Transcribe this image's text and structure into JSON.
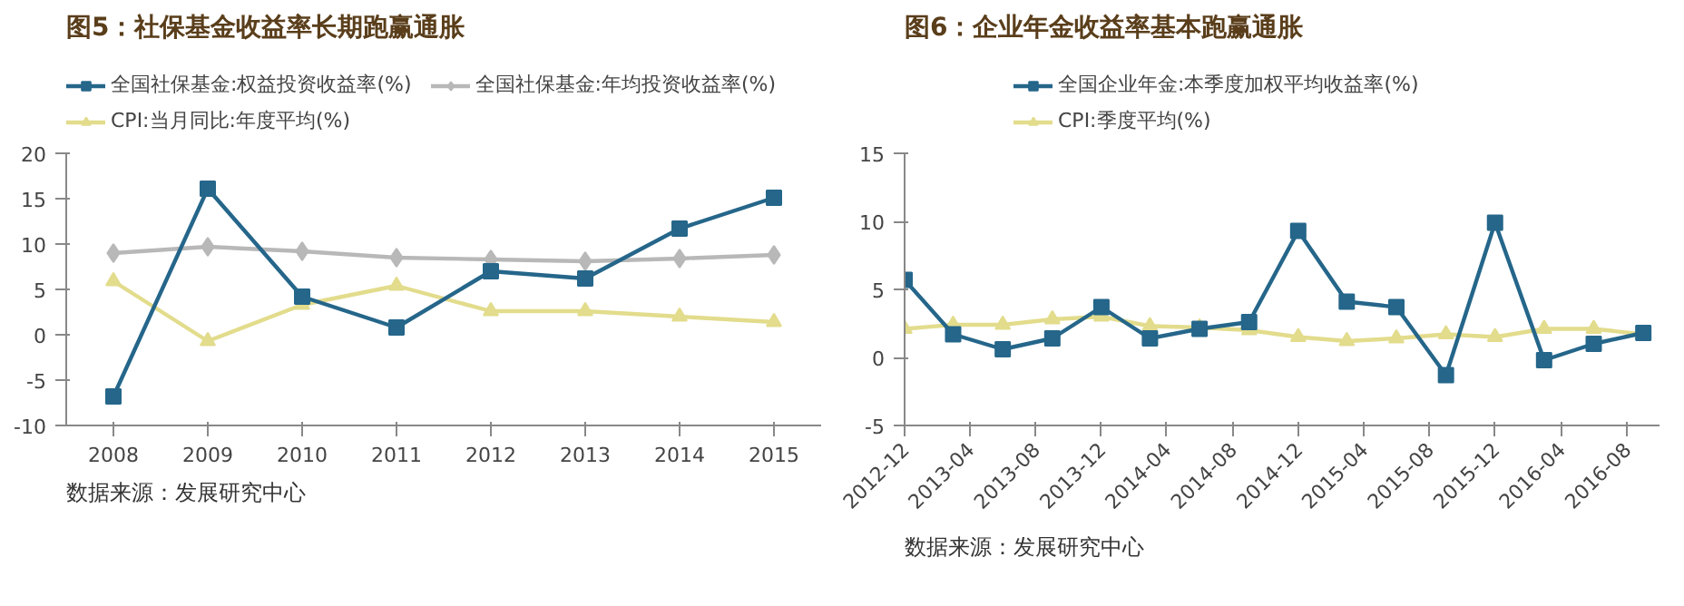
{
  "chart_data": [
    {
      "type": "line",
      "title": "图5：社保基金收益率长期跑赢通胀",
      "categories": [
        "2008",
        "2009",
        "2010",
        "2011",
        "2012",
        "2013",
        "2014",
        "2015"
      ],
      "series": [
        {
          "name": "全国社保基金:权益投资收益率(%)",
          "color": "#25668a",
          "marker": "square",
          "values": [
            -6.8,
            16.1,
            4.2,
            0.8,
            7.0,
            6.2,
            11.7,
            15.1
          ]
        },
        {
          "name": "全国社保基金:年均投资收益率(%)",
          "color": "#b8b8b8",
          "marker": "diamond",
          "values": [
            9.0,
            9.7,
            9.2,
            8.5,
            8.3,
            8.1,
            8.4,
            8.8
          ]
        },
        {
          "name": "CPI:当月同比:年度平均(%)",
          "color": "#e2dc8c",
          "marker": "triangle",
          "values": [
            5.9,
            -0.7,
            3.3,
            5.4,
            2.6,
            2.6,
            2.0,
            1.4
          ]
        }
      ],
      "ylim": [
        -10,
        20
      ],
      "yticks": [
        -10,
        -5,
        0,
        5,
        10,
        15,
        20
      ],
      "grid": false,
      "legend": "top",
      "annotations": [
        "数据来源：发展研究中心"
      ]
    },
    {
      "type": "line",
      "title": "图6：企业年金收益率基本跑赢通胀",
      "x": [
        "2012-12",
        "2013-03",
        "2013-06",
        "2013-09",
        "2013-12",
        "2014-03",
        "2014-06",
        "2014-09",
        "2014-12",
        "2015-03",
        "2015-06",
        "2015-09",
        "2015-12",
        "2016-03",
        "2016-06",
        "2016-09"
      ],
      "series": [
        {
          "name": "全国企业年金:本季度加权平均收益率(%)",
          "color": "#25668a",
          "marker": "square",
          "values": [
            5.7,
            1.7,
            0.6,
            1.4,
            3.7,
            1.4,
            2.1,
            2.6,
            9.3,
            4.1,
            3.7,
            -1.3,
            9.9,
            -0.2,
            1.0,
            1.8
          ]
        },
        {
          "name": "CPI:季度平均(%)",
          "color": "#e2dc8c",
          "marker": "triangle",
          "values": [
            2.1,
            2.4,
            2.4,
            2.8,
            3.0,
            2.3,
            2.2,
            2.0,
            1.5,
            1.2,
            1.4,
            1.7,
            1.5,
            2.1,
            2.1,
            1.7
          ]
        }
      ],
      "xlim": [
        "2012-12",
        "2016-10"
      ],
      "xticks": [
        "2012-12",
        "2013-04",
        "2013-08",
        "2013-12",
        "2014-04",
        "2014-08",
        "2014-12",
        "2015-04",
        "2015-08",
        "2015-12",
        "2016-04",
        "2016-08"
      ],
      "ylim": [
        -5,
        15
      ],
      "yticks": [
        -5,
        0,
        5,
        10,
        15
      ],
      "grid": false,
      "legend": "top",
      "annotations": [
        "数据来源：发展研究中心"
      ]
    }
  ]
}
